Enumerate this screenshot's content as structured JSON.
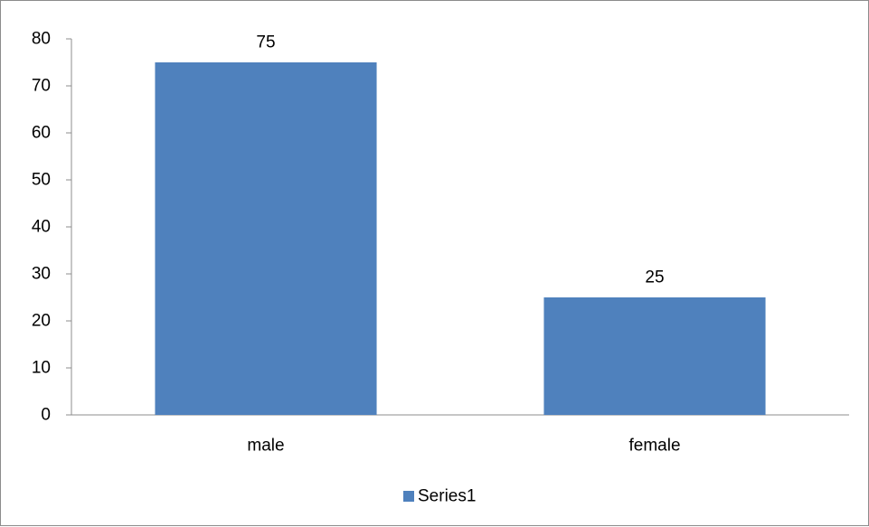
{
  "chart_data": {
    "type": "bar",
    "categories": [
      "male",
      "female"
    ],
    "series": [
      {
        "name": "Series1",
        "values": [
          75,
          25
        ],
        "color": "#4f81bd"
      }
    ],
    "data_labels": [
      "75",
      "25"
    ],
    "ylim": [
      0,
      80
    ],
    "yticks": [
      0,
      10,
      20,
      30,
      40,
      50,
      60,
      70,
      80
    ],
    "grid": false,
    "legend": {
      "position": "bottom",
      "entries": [
        "Series1"
      ]
    }
  }
}
